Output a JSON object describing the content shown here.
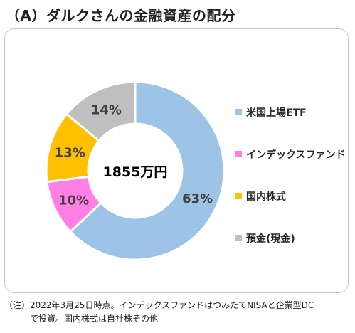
{
  "title": "（A）ダルクさんの金融資産の配分",
  "chart_data": {
    "type": "pie",
    "center_label": "1855万円",
    "legend_position": "right",
    "slices": [
      {
        "name": "米国上場ETF",
        "value": 63,
        "label": "63%",
        "color": "#9dc3e6"
      },
      {
        "name": "インデックスファンド",
        "value": 10,
        "label": "10%",
        "color": "#ff7fe5"
      },
      {
        "name": "国内株式",
        "value": 13,
        "label": "13%",
        "color": "#ffc000"
      },
      {
        "name": "預金(現金)",
        "value": 14,
        "label": "14%",
        "color": "#bfbfbf"
      }
    ]
  },
  "note": {
    "line1": "（注）2022年3月25日時点。インデックスファンドはつみたてNISAと企業型DC",
    "line2": "で投資。国内株式は自社株その他"
  }
}
